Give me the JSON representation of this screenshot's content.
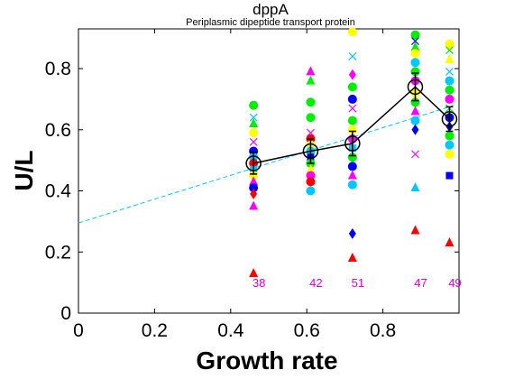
{
  "chart_data": {
    "type": "scatter",
    "title": "dppA",
    "subtitle": "Periplasmic dipeptide transport protein",
    "xlabel": "Growth rate",
    "ylabel": "U/L",
    "xlim": [
      0,
      1.0
    ],
    "ylim": [
      0,
      0.93
    ],
    "xticks": [
      "0",
      "0.2",
      "0.4",
      "0.6",
      "0.8"
    ],
    "yticks": [
      "0",
      "0.2",
      "0.4",
      "0.6",
      "0.8"
    ],
    "grid": false,
    "mean_series": {
      "x": [
        0.46,
        0.61,
        0.72,
        0.885,
        0.975
      ],
      "y": [
        0.49,
        0.53,
        0.555,
        0.74,
        0.635
      ],
      "err": [
        0.035,
        0.04,
        0.04,
        0.045,
        0.04
      ],
      "color": "#000000"
    },
    "fit_line": {
      "x": [
        0,
        0.975
      ],
      "y": [
        0.295,
        0.675
      ],
      "color": "#00c8ff"
    },
    "sample_counts": [
      {
        "x": 0.46,
        "label": "38"
      },
      {
        "x": 0.61,
        "label": "42"
      },
      {
        "x": 0.72,
        "label": "51"
      },
      {
        "x": 0.885,
        "label": "47"
      },
      {
        "x": 0.975,
        "label": "49"
      }
    ],
    "count_color": "#e000e0",
    "points": [
      {
        "x": 0.46,
        "y": 0.68,
        "m": "o",
        "c": "#00ee00"
      },
      {
        "x": 0.46,
        "y": 0.64,
        "m": "x",
        "c": "#00c8ff"
      },
      {
        "x": 0.46,
        "y": 0.62,
        "m": "^",
        "c": "#00ee00"
      },
      {
        "x": 0.46,
        "y": 0.59,
        "m": "o",
        "c": "#ffff00"
      },
      {
        "x": 0.46,
        "y": 0.56,
        "m": "x",
        "c": "#ff00ff"
      },
      {
        "x": 0.46,
        "y": 0.53,
        "m": "o",
        "c": "#0000ff"
      },
      {
        "x": 0.46,
        "y": 0.51,
        "m": "o",
        "c": "#00c8ff"
      },
      {
        "x": 0.46,
        "y": 0.49,
        "m": "o",
        "c": "#ff0000"
      },
      {
        "x": 0.46,
        "y": 0.47,
        "m": "s",
        "c": "#00c8ff"
      },
      {
        "x": 0.46,
        "y": 0.45,
        "m": "o",
        "c": "#ffff00"
      },
      {
        "x": 0.46,
        "y": 0.43,
        "m": "^",
        "c": "#ff00ff"
      },
      {
        "x": 0.46,
        "y": 0.41,
        "m": "o",
        "c": "#0000ff"
      },
      {
        "x": 0.46,
        "y": 0.39,
        "m": "d",
        "c": "#ff0000"
      },
      {
        "x": 0.46,
        "y": 0.35,
        "m": "^",
        "c": "#ff00ff"
      },
      {
        "x": 0.46,
        "y": 0.13,
        "m": "^",
        "c": "#ff0000"
      },
      {
        "x": 0.61,
        "y": 0.79,
        "m": "^",
        "c": "#ff00ff"
      },
      {
        "x": 0.61,
        "y": 0.76,
        "m": "^",
        "c": "#00ee00"
      },
      {
        "x": 0.61,
        "y": 0.69,
        "m": "o",
        "c": "#00ee00"
      },
      {
        "x": 0.61,
        "y": 0.64,
        "m": "o",
        "c": "#00ee00"
      },
      {
        "x": 0.61,
        "y": 0.59,
        "m": "x",
        "c": "#ff00ff"
      },
      {
        "x": 0.61,
        "y": 0.57,
        "m": "o",
        "c": "#ff0000"
      },
      {
        "x": 0.61,
        "y": 0.55,
        "m": "o",
        "c": "#ffff00"
      },
      {
        "x": 0.61,
        "y": 0.53,
        "m": "o",
        "c": "#00c8ff"
      },
      {
        "x": 0.61,
        "y": 0.51,
        "m": "s",
        "c": "#0000ff"
      },
      {
        "x": 0.61,
        "y": 0.49,
        "m": "o",
        "c": "#00ee00"
      },
      {
        "x": 0.61,
        "y": 0.47,
        "m": "^",
        "c": "#ffff00"
      },
      {
        "x": 0.61,
        "y": 0.45,
        "m": "o",
        "c": "#ff00ff"
      },
      {
        "x": 0.61,
        "y": 0.43,
        "m": "o",
        "c": "#ff0000"
      },
      {
        "x": 0.61,
        "y": 0.4,
        "m": "o",
        "c": "#00c8ff"
      },
      {
        "x": 0.72,
        "y": 0.92,
        "m": "o",
        "c": "#ffff00"
      },
      {
        "x": 0.72,
        "y": 0.84,
        "m": "x",
        "c": "#00c8ff"
      },
      {
        "x": 0.72,
        "y": 0.78,
        "m": "d",
        "c": "#ff00ff"
      },
      {
        "x": 0.72,
        "y": 0.74,
        "m": "o",
        "c": "#00ee00"
      },
      {
        "x": 0.72,
        "y": 0.7,
        "m": "o",
        "c": "#0000ff"
      },
      {
        "x": 0.72,
        "y": 0.67,
        "m": "x",
        "c": "#ff00ff"
      },
      {
        "x": 0.72,
        "y": 0.63,
        "m": "o",
        "c": "#00ee00"
      },
      {
        "x": 0.72,
        "y": 0.6,
        "m": "o",
        "c": "#ffff00"
      },
      {
        "x": 0.72,
        "y": 0.57,
        "m": "o",
        "c": "#ff00ff"
      },
      {
        "x": 0.72,
        "y": 0.54,
        "m": "s",
        "c": "#00c8ff"
      },
      {
        "x": 0.72,
        "y": 0.51,
        "m": "o",
        "c": "#00ee00"
      },
      {
        "x": 0.72,
        "y": 0.48,
        "m": "o",
        "c": "#0000ff"
      },
      {
        "x": 0.72,
        "y": 0.45,
        "m": "^",
        "c": "#ff00ff"
      },
      {
        "x": 0.72,
        "y": 0.42,
        "m": "o",
        "c": "#00c8ff"
      },
      {
        "x": 0.72,
        "y": 0.26,
        "m": "d",
        "c": "#0000ff"
      },
      {
        "x": 0.72,
        "y": 0.18,
        "m": "^",
        "c": "#ff0000"
      },
      {
        "x": 0.885,
        "y": 0.91,
        "m": "o",
        "c": "#00ee00"
      },
      {
        "x": 0.885,
        "y": 0.89,
        "m": "x",
        "c": "#0000ff"
      },
      {
        "x": 0.885,
        "y": 0.87,
        "m": "^",
        "c": "#00ee00"
      },
      {
        "x": 0.885,
        "y": 0.85,
        "m": "o",
        "c": "#ffff00"
      },
      {
        "x": 0.885,
        "y": 0.82,
        "m": "o",
        "c": "#00c8ff"
      },
      {
        "x": 0.885,
        "y": 0.79,
        "m": "o",
        "c": "#00ee00"
      },
      {
        "x": 0.885,
        "y": 0.76,
        "m": "o",
        "c": "#ff00ff"
      },
      {
        "x": 0.885,
        "y": 0.72,
        "m": "o",
        "c": "#ffff00"
      },
      {
        "x": 0.885,
        "y": 0.69,
        "m": "o",
        "c": "#00ee00"
      },
      {
        "x": 0.885,
        "y": 0.66,
        "m": "^",
        "c": "#ff00ff"
      },
      {
        "x": 0.885,
        "y": 0.63,
        "m": "o",
        "c": "#00c8ff"
      },
      {
        "x": 0.885,
        "y": 0.6,
        "m": "d",
        "c": "#0000ff"
      },
      {
        "x": 0.885,
        "y": 0.52,
        "m": "x",
        "c": "#ff00ff"
      },
      {
        "x": 0.885,
        "y": 0.41,
        "m": "^",
        "c": "#00c8ff"
      },
      {
        "x": 0.885,
        "y": 0.27,
        "m": "^",
        "c": "#ff0000"
      },
      {
        "x": 0.975,
        "y": 0.88,
        "m": "o",
        "c": "#ffff00"
      },
      {
        "x": 0.975,
        "y": 0.86,
        "m": "x",
        "c": "#00ee00"
      },
      {
        "x": 0.975,
        "y": 0.83,
        "m": "^",
        "c": "#ffff00"
      },
      {
        "x": 0.975,
        "y": 0.79,
        "m": "x",
        "c": "#00c8ff"
      },
      {
        "x": 0.975,
        "y": 0.76,
        "m": "o",
        "c": "#00c8ff"
      },
      {
        "x": 0.975,
        "y": 0.73,
        "m": "o",
        "c": "#00ee00"
      },
      {
        "x": 0.975,
        "y": 0.7,
        "m": "o",
        "c": "#ff00ff"
      },
      {
        "x": 0.975,
        "y": 0.67,
        "m": "x",
        "c": "#00ee00"
      },
      {
        "x": 0.975,
        "y": 0.64,
        "m": "o",
        "c": "#0000ff"
      },
      {
        "x": 0.975,
        "y": 0.61,
        "m": "d",
        "c": "#0000ff"
      },
      {
        "x": 0.975,
        "y": 0.58,
        "m": "o",
        "c": "#00ee00"
      },
      {
        "x": 0.975,
        "y": 0.55,
        "m": "o",
        "c": "#00c8ff"
      },
      {
        "x": 0.975,
        "y": 0.52,
        "m": "o",
        "c": "#ffff00"
      },
      {
        "x": 0.975,
        "y": 0.45,
        "m": "s",
        "c": "#0000ff"
      },
      {
        "x": 0.975,
        "y": 0.23,
        "m": "^",
        "c": "#ff0000"
      }
    ]
  }
}
